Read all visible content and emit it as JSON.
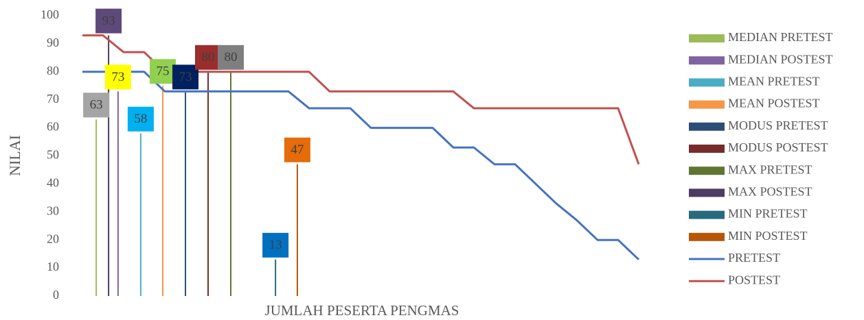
{
  "chart_data": {
    "type": "line",
    "ylabel": "NILAI",
    "xlabel": "JUMLAH PESERTA PENGMAS",
    "ylim": [
      0,
      100
    ],
    "yticks": [
      0,
      10,
      20,
      30,
      40,
      50,
      60,
      70,
      80,
      90,
      100
    ],
    "series": [
      {
        "name": "MEDIAN PRETEST",
        "type": "stem",
        "color": "#9bbb59",
        "label_color": "#a5a5a5",
        "x": 0.67,
        "values": [
          63
        ]
      },
      {
        "name": "MEDIAN POSTEST",
        "type": "stem",
        "color": "#8064a2",
        "label_color": "#ffff00",
        "x": 1.73,
        "values": [
          73
        ]
      },
      {
        "name": "MEAN PRETEST",
        "type": "stem",
        "color": "#4bacc6",
        "label_color": "#00b0f0",
        "x": 2.83,
        "values": [
          58
        ]
      },
      {
        "name": "MEAN POSTEST",
        "type": "stem",
        "color": "#f79646",
        "label_color": "#92d050",
        "x": 3.9,
        "values": [
          75
        ]
      },
      {
        "name": "MODUS PRETEST",
        "type": "stem",
        "color": "#2c4d75",
        "label_color": "#002060",
        "x": 5,
        "values": [
          73
        ]
      },
      {
        "name": "MODUS POSTEST",
        "type": "stem",
        "color": "#772c2a",
        "label_color": "#9b2d2d",
        "x": 6.1,
        "values": [
          80
        ]
      },
      {
        "name": "MAX PRETEST",
        "type": "stem",
        "color": "#5f7530",
        "label_color": "#7f7f7f",
        "x": 7.2,
        "values": [
          80
        ]
      },
      {
        "name": "MAX POSTEST",
        "type": "stem",
        "color": "#4d3b62",
        "label_color": "#5f497a",
        "x": 1.27,
        "values": [
          93
        ]
      },
      {
        "name": "MIN PRETEST",
        "type": "stem",
        "color": "#276a7c",
        "label_color": "#0070c0",
        "x": 9.37,
        "values": [
          13
        ]
      },
      {
        "name": "MIN POSTEST",
        "type": "stem",
        "color": "#b65708",
        "label_color": "#e46c0a",
        "x": 10.43,
        "values": [
          47
        ]
      },
      {
        "name": "PRETEST",
        "type": "line",
        "color": "#4472c4",
        "values": [
          80,
          80,
          80,
          80,
          73,
          73,
          73,
          73,
          73,
          73,
          73,
          67,
          67,
          67,
          60,
          60,
          60,
          60,
          53,
          53,
          47,
          47,
          40,
          33,
          27,
          20,
          20,
          13
        ]
      },
      {
        "name": "POSTEST",
        "type": "line",
        "color": "#c0504d",
        "values": [
          93,
          93,
          87,
          87,
          80,
          80,
          80,
          80,
          80,
          80,
          80,
          80,
          73,
          73,
          73,
          73,
          73,
          73,
          73,
          67,
          67,
          67,
          67,
          67,
          67,
          67,
          67,
          47
        ]
      }
    ]
  }
}
